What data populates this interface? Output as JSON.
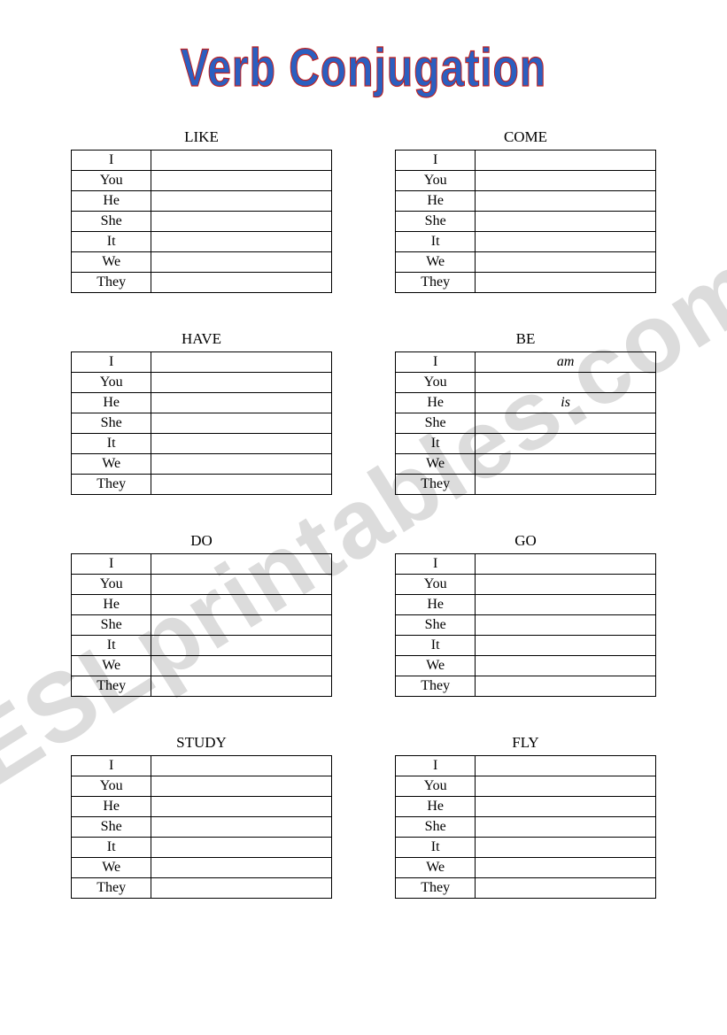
{
  "title": "Verb Conjugation",
  "watermark": "ESLprintables.com",
  "pronouns": [
    "I",
    "You",
    "He",
    "She",
    "It",
    "We",
    "They"
  ],
  "pairs": [
    {
      "left": {
        "verb": "LIKE",
        "answers": [
          "",
          "",
          "",
          "",
          "",
          "",
          ""
        ]
      },
      "right": {
        "verb": "COME",
        "answers": [
          "",
          "",
          "",
          "",
          "",
          "",
          ""
        ]
      }
    },
    {
      "left": {
        "verb": "HAVE",
        "answers": [
          "",
          "",
          "",
          "",
          "",
          "",
          ""
        ]
      },
      "right": {
        "verb": "BE",
        "answers": [
          "am",
          "",
          "is",
          "",
          "",
          "",
          ""
        ]
      }
    },
    {
      "left": {
        "verb": "DO",
        "answers": [
          "",
          "",
          "",
          "",
          "",
          "",
          ""
        ]
      },
      "right": {
        "verb": "GO",
        "answers": [
          "",
          "",
          "",
          "",
          "",
          "",
          ""
        ]
      }
    },
    {
      "left": {
        "verb": "STUDY",
        "answers": [
          "",
          "",
          "",
          "",
          "",
          "",
          ""
        ]
      },
      "right": {
        "verb": "FLY",
        "answers": [
          "",
          "",
          "",
          "",
          "",
          "",
          ""
        ]
      }
    }
  ],
  "colors": {
    "title_fill": "#2b5fc0",
    "title_stroke": "#c02020",
    "border": "#000000",
    "background": "#ffffff",
    "watermark": "#dcdcdc"
  }
}
